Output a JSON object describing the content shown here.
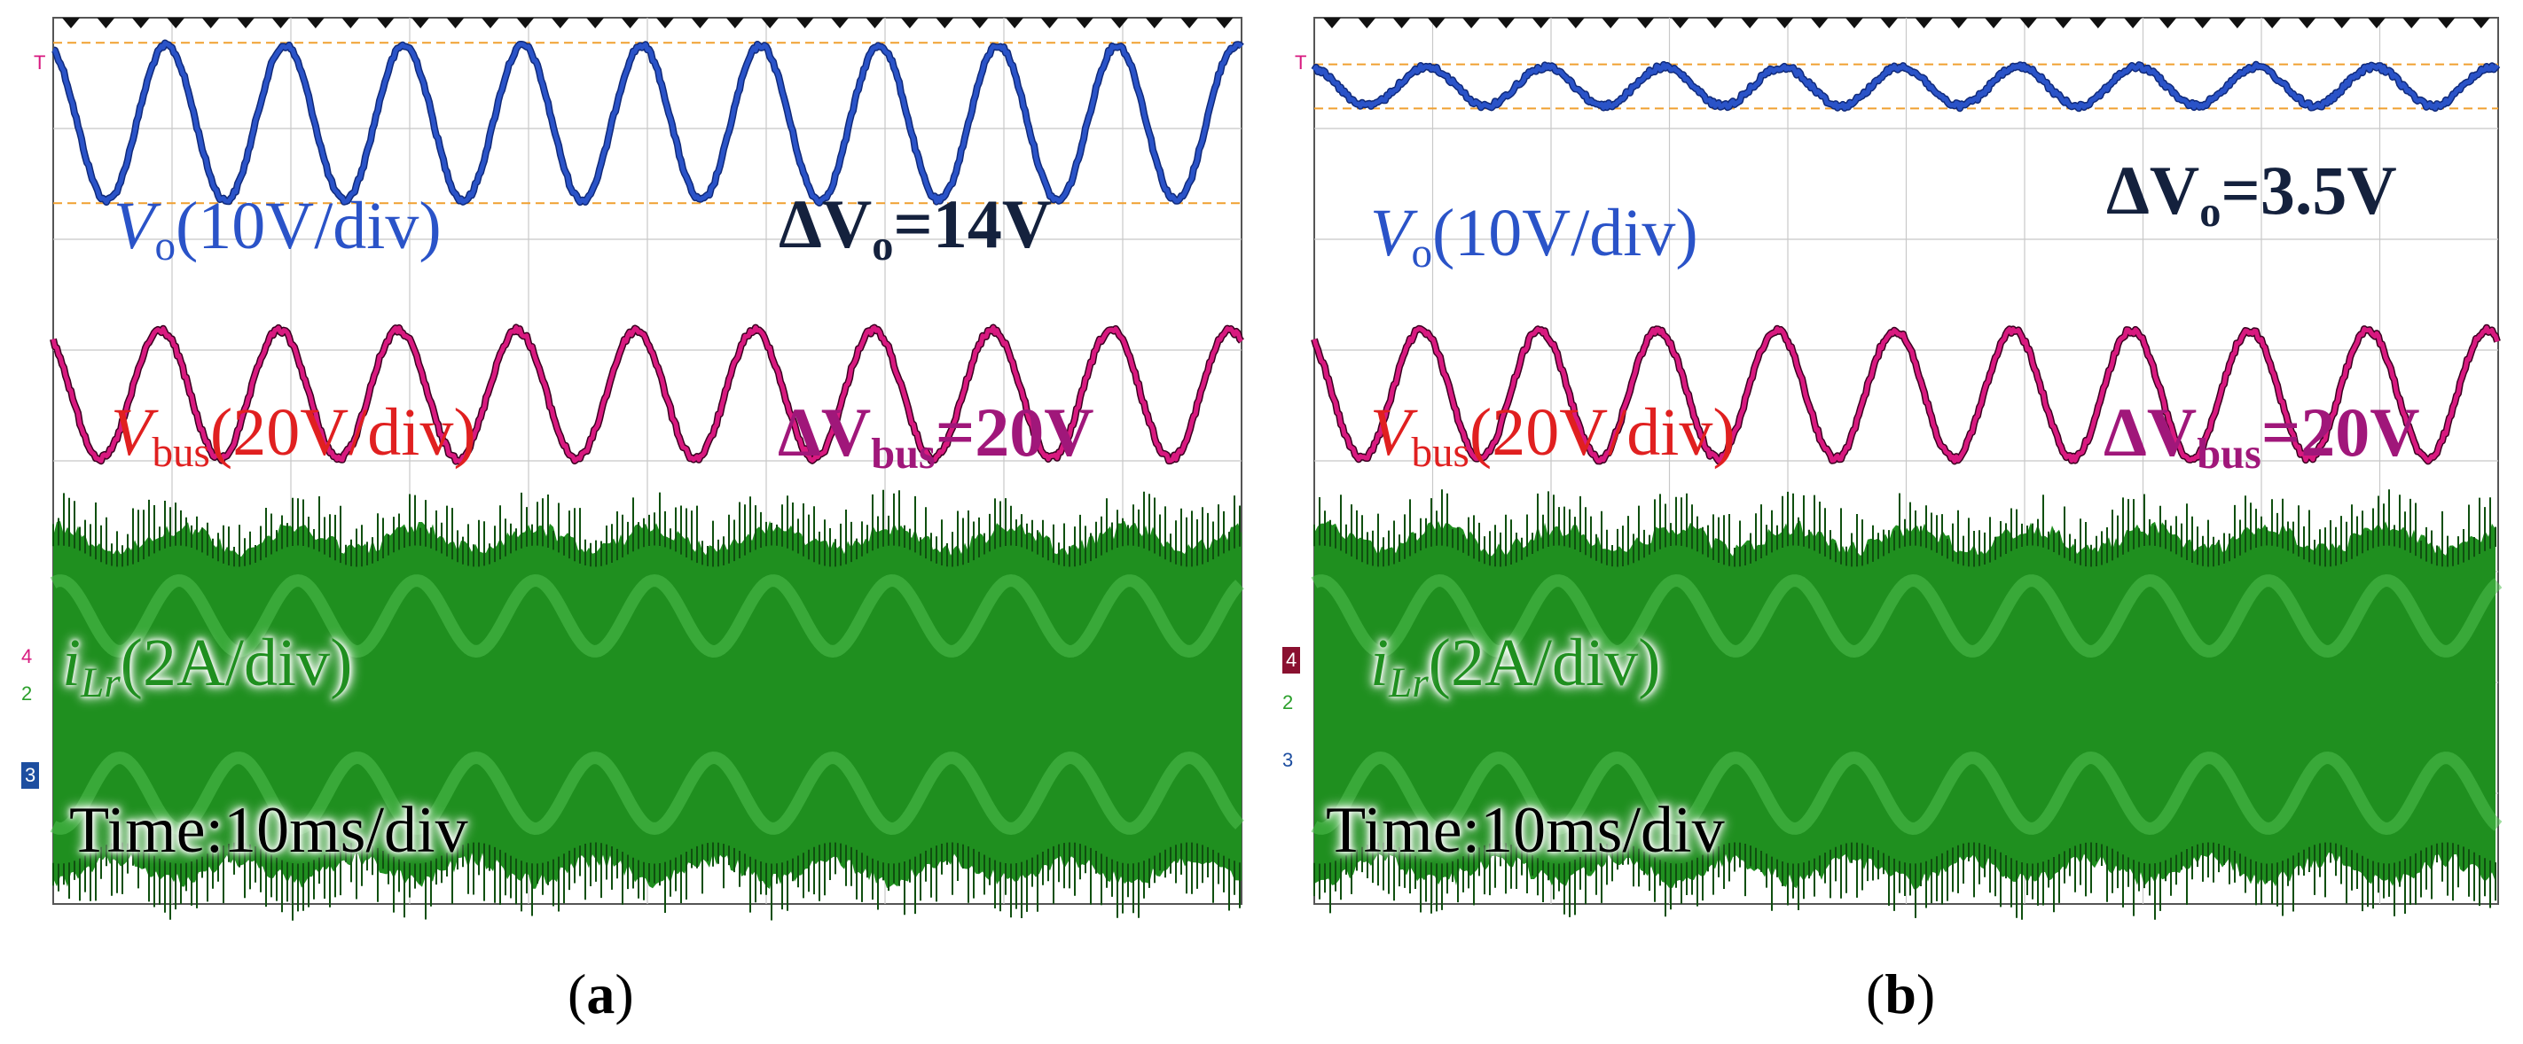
{
  "colors": {
    "vo": "#2a53c8",
    "vbus": "#d8197f",
    "ilr": "#1f8f1f",
    "ilr_dark": "#0f4f0f",
    "ref": "#f0a030",
    "delta_vo": "#14213d",
    "delta_vbus": "#a0177a",
    "vbus_label": "#e02020"
  },
  "panels": [
    {
      "caption_open": "(",
      "caption_letter": "a",
      "caption_close": ")",
      "vo_label": {
        "sym": "V",
        "sub": "o",
        "scale": "(10V/div)"
      },
      "delta_vo": {
        "pre": "ΔV",
        "sub": "o",
        "post": "=14V"
      },
      "vbus_label": {
        "sym": "V",
        "sub": "bus",
        "scale": "(20V/div)"
      },
      "delta_vbus": {
        "pre": "ΔV",
        "sub": "bus",
        "post": "=20V"
      },
      "ilr_label": {
        "sym": "i",
        "sub": "Lr",
        "scale": "(2A/div)"
      },
      "time_label": "Time:10ms/div",
      "markers": {
        "t": "T",
        "ch4": "4",
        "ch2": "2",
        "ch3": "3"
      }
    },
    {
      "caption_open": "(",
      "caption_letter": "b",
      "caption_close": ")",
      "vo_label": {
        "sym": "V",
        "sub": "o",
        "scale": "(10V/div)"
      },
      "delta_vo": {
        "pre": "ΔV",
        "sub": "o",
        "post": "=3.5V"
      },
      "vbus_label": {
        "sym": "V",
        "sub": "bus",
        "scale": "(20V/div)"
      },
      "delta_vbus": {
        "pre": "ΔV",
        "sub": "bus",
        "post": "=20V"
      },
      "ilr_label": {
        "sym": "i",
        "sub": "Lr",
        "scale": "(2A/div)"
      },
      "time_label": "Time:10ms/div",
      "markers": {
        "t": "T",
        "ch4": "4",
        "ch2": "2",
        "ch3": "3"
      }
    }
  ],
  "chart_data": [
    {
      "type": "line",
      "panel": "a",
      "time_per_div_ms": 10,
      "x_divisions": 10,
      "y_divisions": 8,
      "grid": true,
      "series": [
        {
          "name": "Vo",
          "scale_per_div": "10V/div",
          "ripple_frequency_hz": 100,
          "peak_to_peak_v": 14,
          "ripple_divisions": 1.4
        },
        {
          "name": "Vbus",
          "scale_per_div": "20V/div",
          "ripple_frequency_hz": 100,
          "peak_to_peak_v": 20,
          "ripple_divisions": 1.0
        },
        {
          "name": "iLr",
          "scale_per_div": "2A/div",
          "carrier": "high-frequency",
          "envelope_frequency_hz": 100
        }
      ]
    },
    {
      "type": "line",
      "panel": "b",
      "time_per_div_ms": 10,
      "x_divisions": 10,
      "y_divisions": 8,
      "grid": true,
      "series": [
        {
          "name": "Vo",
          "scale_per_div": "10V/div",
          "ripple_frequency_hz": 100,
          "peak_to_peak_v": 3.5,
          "ripple_divisions": 0.35
        },
        {
          "name": "Vbus",
          "scale_per_div": "20V/div",
          "ripple_frequency_hz": 100,
          "peak_to_peak_v": 20,
          "ripple_divisions": 1.0
        },
        {
          "name": "iLr",
          "scale_per_div": "2A/div",
          "carrier": "high-frequency",
          "envelope_frequency_hz": 100
        }
      ]
    }
  ]
}
